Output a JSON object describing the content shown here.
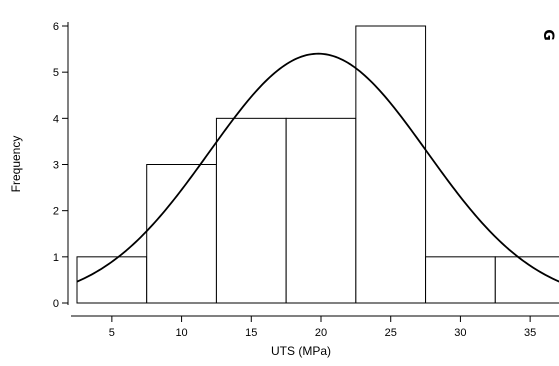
{
  "chart_data": {
    "type": "bar",
    "subtype": "histogram",
    "xlabel": "UTS (MPa)",
    "ylabel": "Frequency",
    "bins": [
      {
        "from": 2.5,
        "to": 7.5,
        "count": 1
      },
      {
        "from": 7.5,
        "to": 12.5,
        "count": 3
      },
      {
        "from": 12.5,
        "to": 17.5,
        "count": 4
      },
      {
        "from": 17.5,
        "to": 22.5,
        "count": 4
      },
      {
        "from": 22.5,
        "to": 27.5,
        "count": 6
      },
      {
        "from": 27.5,
        "to": 32.5,
        "count": 1
      },
      {
        "from": 32.5,
        "to": 37.5,
        "count": 1
      }
    ],
    "normal_fit": {
      "peak": 5.4,
      "mean": 19.8,
      "sd": 7.8
    },
    "xticks": [
      "5",
      "10",
      "15",
      "20",
      "25",
      "30",
      "35"
    ],
    "xtick_values": [
      5,
      10,
      15,
      20,
      25,
      30,
      35
    ],
    "yticks": [
      "0",
      "1",
      "2",
      "3",
      "4",
      "5",
      "6"
    ],
    "yticks_values": [
      0,
      1,
      2,
      3,
      4,
      5,
      6
    ],
    "xlim": [
      2.5,
      37.5
    ],
    "ylim": [
      0,
      6
    ],
    "grid": false,
    "corner_mark": "G"
  }
}
